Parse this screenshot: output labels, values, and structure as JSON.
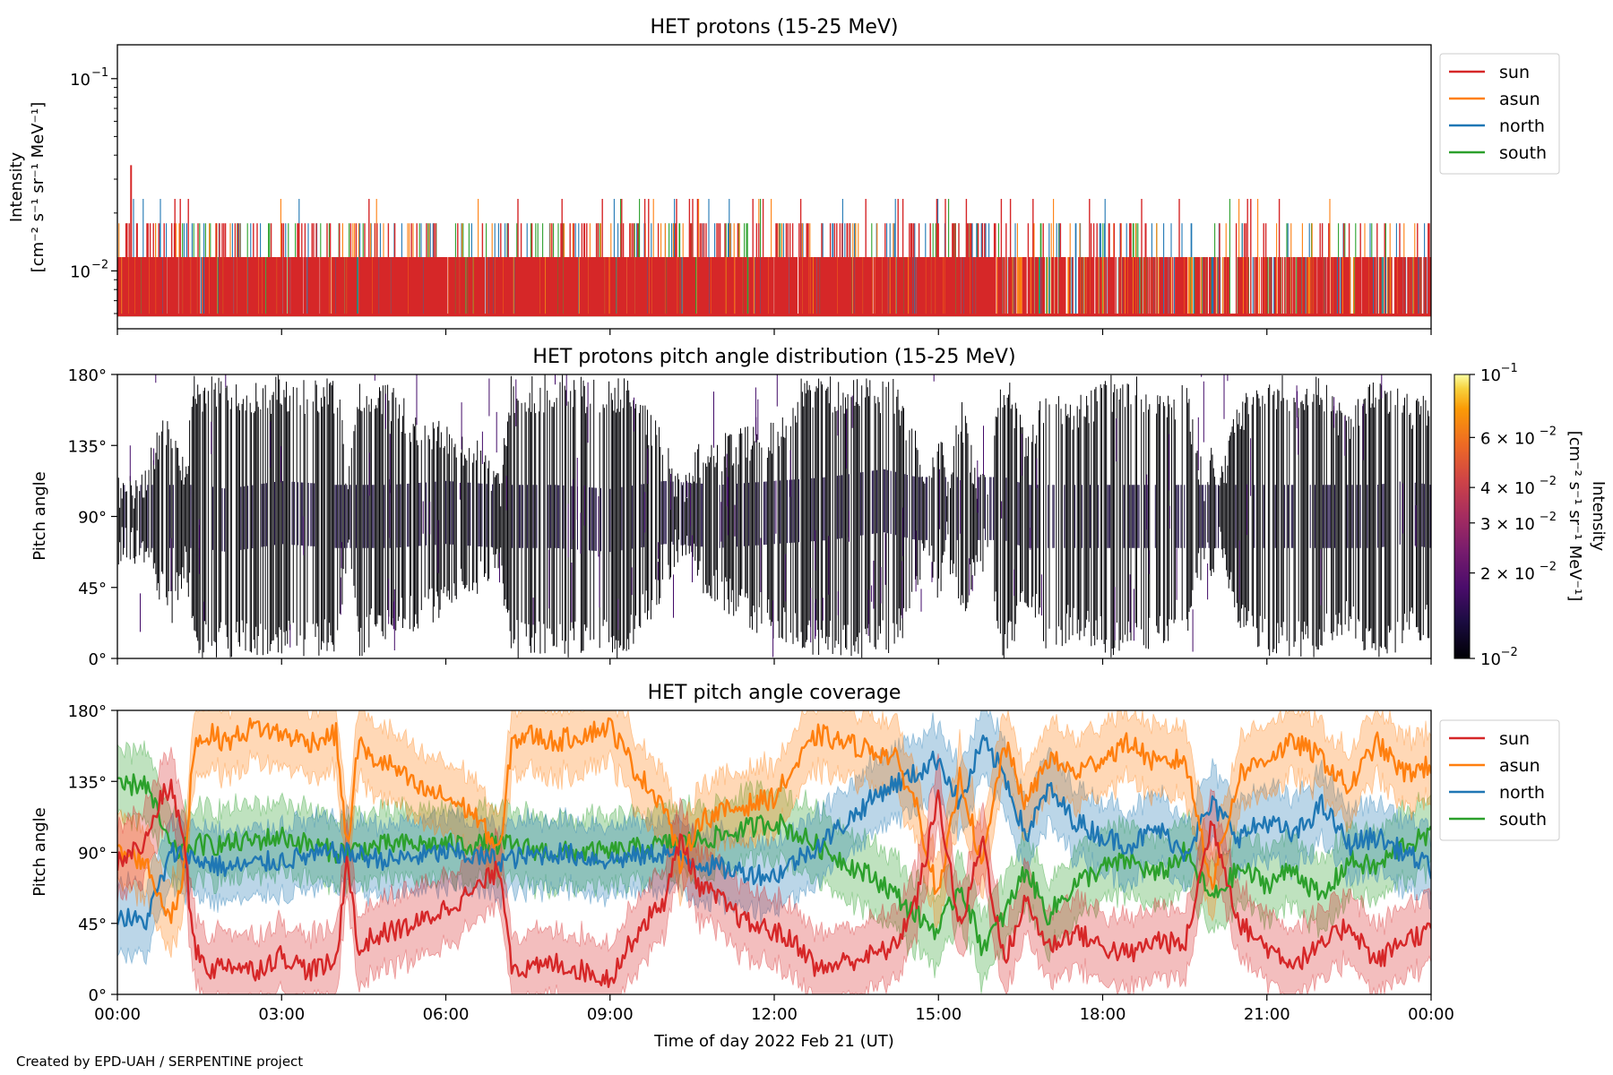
{
  "footer": {
    "credit": "Created by EPD-UAH / SERPENTINE project"
  },
  "colors": {
    "sun": "#d62728",
    "asun": "#ff7f0e",
    "north": "#1f77b4",
    "south": "#2ca02c"
  },
  "chart_data": [
    {
      "type": "line",
      "title": "HET protons (15-25 MeV)",
      "ylabel": [
        "Intensity",
        "[cm⁻² s⁻¹ sr⁻¹ MeV⁻¹]"
      ],
      "yscale": "log",
      "ylim": [
        0.005,
        0.15
      ],
      "yticks": [
        {
          "value": 0.1,
          "base": "10",
          "exp": "−1"
        },
        {
          "value": 0.01,
          "base": "10",
          "exp": "−2"
        }
      ],
      "xlim": [
        0,
        24
      ],
      "legend": {
        "placement": "outside-right",
        "entries": [
          "sun",
          "asun",
          "north",
          "south"
        ]
      },
      "series": [
        {
          "name": "sun",
          "levels": [
            0.0059,
            0.0118,
            0.0177,
            0.0237,
            0.0355
          ],
          "baseline": 0.0059,
          "peak": {
            "x": 0.25,
            "y": 0.0355
          }
        },
        {
          "name": "asun",
          "levels": [
            0.0059,
            0.0118,
            0.0177,
            0.0237
          ]
        },
        {
          "name": "north",
          "levels": [
            0.0059,
            0.0118,
            0.0177,
            0.0237
          ]
        },
        {
          "name": "south",
          "levels": [
            0.0059,
            0.0118,
            0.0177,
            0.0237
          ]
        }
      ]
    },
    {
      "type": "heatmap",
      "title": "HET protons pitch angle distribution (15-25 MeV)",
      "ylabel": "Pitch angle",
      "ylim": [
        0,
        180
      ],
      "yticks": [
        "0°",
        "45°",
        "90°",
        "135°",
        "180°"
      ],
      "xlim": [
        0,
        24
      ],
      "colorbar": {
        "label": [
          "Intensity",
          "[cm⁻² s⁻¹ sr⁻¹ MeV⁻¹]"
        ],
        "scale": "log",
        "range": [
          0.01,
          0.1
        ],
        "ticks": [
          {
            "value": 0.1,
            "text": "10",
            "exp": "−1",
            "mant": ""
          },
          {
            "value": 0.06,
            "text": "10",
            "exp": "−2",
            "mant": "6 × "
          },
          {
            "value": 0.04,
            "text": "10",
            "exp": "−2",
            "mant": "4 × "
          },
          {
            "value": 0.03,
            "text": "10",
            "exp": "−2",
            "mant": "3 × "
          },
          {
            "value": 0.02,
            "text": "10",
            "exp": "−2",
            "mant": "2 × "
          },
          {
            "value": 0.01,
            "text": "10",
            "exp": "−2",
            "mant": ""
          }
        ],
        "colormap": "inferno"
      }
    },
    {
      "type": "line",
      "title": "HET pitch angle coverage",
      "ylabel": "Pitch angle",
      "xlabel": "Time of day 2022 Feb 21 (UT)",
      "ylim": [
        0,
        180
      ],
      "yticks": [
        "0°",
        "45°",
        "90°",
        "135°",
        "180°"
      ],
      "xlim": [
        0,
        24
      ],
      "xticks": [
        "00:00",
        "03:00",
        "06:00",
        "09:00",
        "12:00",
        "15:00",
        "18:00",
        "21:00",
        "00:00"
      ],
      "legend": {
        "placement": "outside-right",
        "entries": [
          "sun",
          "asun",
          "north",
          "south"
        ]
      },
      "shaded_band_halfwidth_deg": 22,
      "series": [
        {
          "name": "sun",
          "x": [
            0,
            0.5,
            0.8,
            1.0,
            1.2,
            1.4,
            1.7,
            2.0,
            2.5,
            3.0,
            3.5,
            4.0,
            4.2,
            4.4,
            4.6,
            5.0,
            5.5,
            6.0,
            6.5,
            7.0,
            7.2,
            7.5,
            8.0,
            8.5,
            9.0,
            9.5,
            10.0,
            10.3,
            10.6,
            11.0,
            11.5,
            12.0,
            12.5,
            12.8,
            13.2,
            13.8,
            14.2,
            14.6,
            15.0,
            15.4,
            15.8,
            16.2,
            16.6,
            17.0,
            17.5,
            18.0,
            18.5,
            19.0,
            19.5,
            20.0,
            20.5,
            21.0,
            21.5,
            22.0,
            22.5,
            23.0,
            23.5,
            24.0
          ],
          "y": [
            85,
            95,
            125,
            130,
            100,
            30,
            15,
            20,
            15,
            25,
            15,
            20,
            90,
            25,
            35,
            40,
            45,
            55,
            65,
            80,
            20,
            15,
            20,
            15,
            10,
            40,
            60,
            100,
            70,
            60,
            45,
            40,
            30,
            15,
            20,
            25,
            30,
            60,
            125,
            40,
            100,
            20,
            60,
            30,
            40,
            30,
            25,
            35,
            30,
            110,
            45,
            30,
            20,
            30,
            45,
            20,
            35,
            40
          ]
        },
        {
          "name": "asun",
          "x": [
            0,
            0.5,
            0.8,
            1.0,
            1.2,
            1.4,
            1.7,
            2.0,
            2.5,
            3.0,
            3.5,
            4.0,
            4.2,
            4.4,
            4.6,
            5.0,
            5.5,
            6.0,
            6.5,
            7.0,
            7.2,
            7.5,
            8.0,
            8.5,
            9.0,
            9.5,
            10.0,
            10.3,
            10.6,
            11.0,
            11.5,
            12.0,
            12.5,
            12.8,
            13.2,
            13.8,
            14.2,
            14.6,
            15.0,
            15.4,
            15.8,
            16.2,
            16.6,
            17.0,
            17.5,
            18.0,
            18.5,
            19.0,
            19.5,
            20.0,
            20.5,
            21.0,
            21.5,
            22.0,
            22.5,
            23.0,
            23.5,
            24.0
          ],
          "y": [
            90,
            85,
            60,
            50,
            70,
            160,
            165,
            160,
            170,
            165,
            160,
            165,
            90,
            160,
            150,
            145,
            130,
            125,
            115,
            90,
            160,
            165,
            160,
            165,
            170,
            140,
            120,
            80,
            110,
            115,
            120,
            125,
            150,
            165,
            160,
            155,
            150,
            120,
            60,
            140,
            80,
            160,
            120,
            150,
            140,
            150,
            160,
            145,
            150,
            70,
            140,
            150,
            160,
            150,
            130,
            160,
            140,
            145
          ]
        },
        {
          "name": "north",
          "x": [
            0,
            0.5,
            1.0,
            1.5,
            2.0,
            3.0,
            4.0,
            5.0,
            6.0,
            7.0,
            8.0,
            9.0,
            10.0,
            11.0,
            12.0,
            13.0,
            14.0,
            14.6,
            15.0,
            15.4,
            15.8,
            16.2,
            16.6,
            17.0,
            17.5,
            18.0,
            18.5,
            19.0,
            19.5,
            20.0,
            20.5,
            21.0,
            21.5,
            22.0,
            22.5,
            23.0,
            23.5,
            24.0
          ],
          "y": [
            50,
            45,
            90,
            85,
            80,
            85,
            90,
            85,
            90,
            85,
            90,
            85,
            90,
            80,
            75,
            100,
            130,
            140,
            150,
            120,
            160,
            140,
            100,
            130,
            110,
            100,
            95,
            105,
            90,
            120,
            100,
            110,
            100,
            120,
            95,
            100,
            90,
            80
          ]
        },
        {
          "name": "south",
          "x": [
            0,
            0.5,
            1.0,
            1.5,
            2.0,
            3.0,
            4.0,
            5.0,
            6.0,
            7.0,
            8.0,
            9.0,
            10.0,
            11.0,
            12.0,
            13.0,
            14.0,
            14.6,
            15.0,
            15.4,
            15.8,
            16.2,
            16.6,
            17.0,
            17.5,
            18.0,
            18.5,
            19.0,
            19.5,
            20.0,
            20.5,
            21.0,
            21.5,
            22.0,
            22.5,
            23.0,
            23.5,
            24.0
          ],
          "y": [
            130,
            135,
            90,
            95,
            95,
            100,
            90,
            95,
            95,
            95,
            90,
            90,
            95,
            100,
            110,
            90,
            70,
            50,
            40,
            70,
            30,
            50,
            80,
            50,
            70,
            80,
            85,
            75,
            90,
            60,
            80,
            70,
            80,
            60,
            85,
            80,
            95,
            100
          ]
        }
      ]
    }
  ]
}
